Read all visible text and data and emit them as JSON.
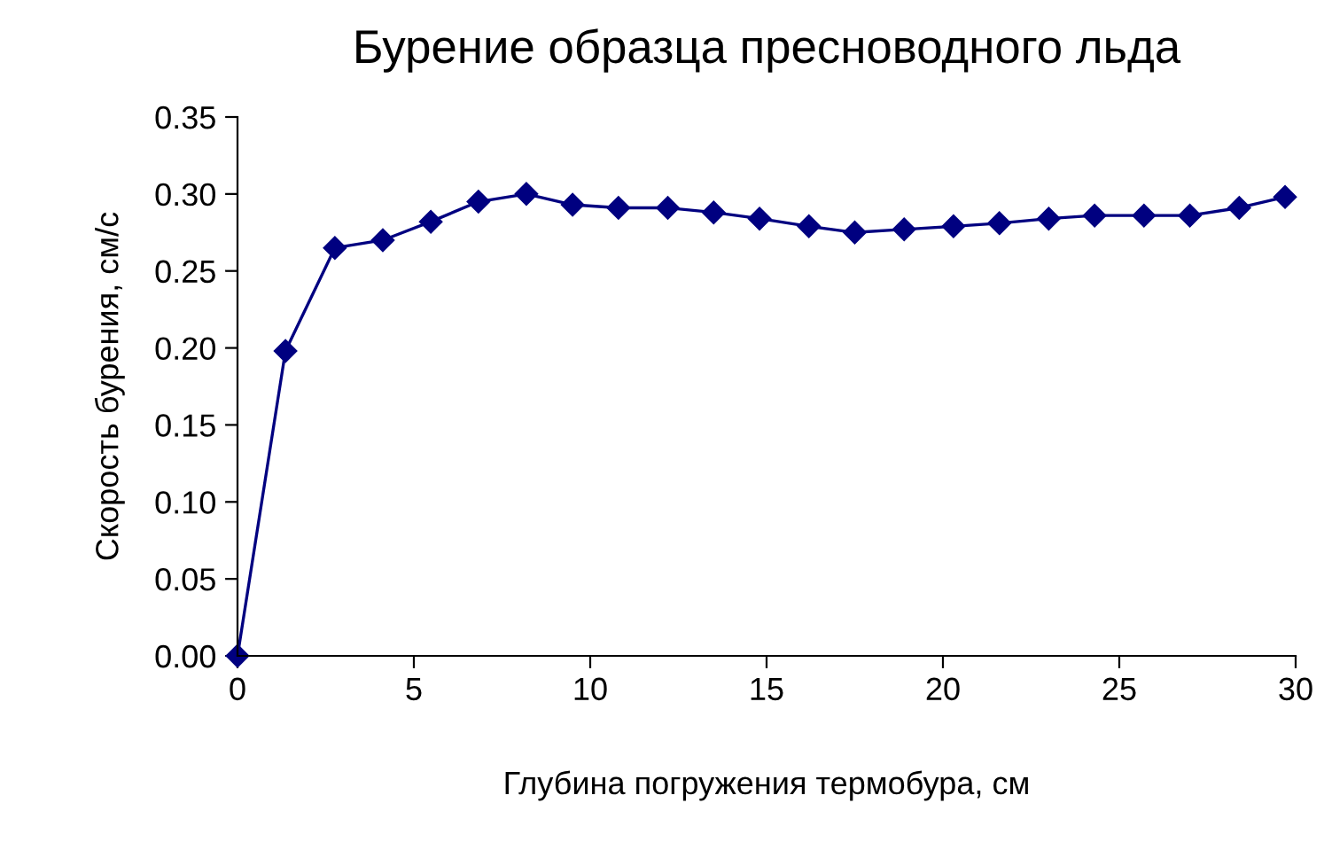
{
  "chart_data": {
    "type": "line",
    "title": "Бурение образца пресноводного льда",
    "xlabel": "Глубина погружения термобура, см",
    "ylabel": "Скорость бурения, см/с",
    "x": [
      0,
      1.36,
      2.76,
      4.12,
      5.48,
      6.83,
      8.19,
      9.5,
      10.8,
      12.2,
      13.5,
      14.8,
      16.2,
      17.5,
      18.9,
      20.3,
      21.6,
      23.0,
      24.3,
      25.7,
      27.0,
      28.4,
      29.7
    ],
    "series": [
      {
        "color": "#000080",
        "values": [
          0,
          0.198,
          0.265,
          0.27,
          0.282,
          0.295,
          0.3,
          0.293,
          0.291,
          0.291,
          0.288,
          0.284,
          0.279,
          0.275,
          0.277,
          0.279,
          0.281,
          0.284,
          0.286,
          0.286,
          0.286,
          0.291,
          0.298
        ]
      }
    ],
    "xlim": [
      0,
      30
    ],
    "xticks": [
      0,
      5,
      10,
      15,
      20,
      25,
      30
    ],
    "ylim": [
      0,
      0.35
    ],
    "yticks": [
      {
        "value": 0,
        "label": "0.00"
      },
      {
        "value": 0.05,
        "label": "0.05"
      },
      {
        "value": 0.1,
        "label": "0.10"
      },
      {
        "value": 0.15,
        "label": "0.15"
      },
      {
        "value": 0.2,
        "label": "0.20"
      },
      {
        "value": 0.25,
        "label": "0.25"
      },
      {
        "value": 0.3,
        "label": "0.30"
      },
      {
        "value": 0.35,
        "label": "0.35"
      }
    ],
    "marker": "diamond",
    "line_style": "solid",
    "grid": false,
    "legend": false
  }
}
